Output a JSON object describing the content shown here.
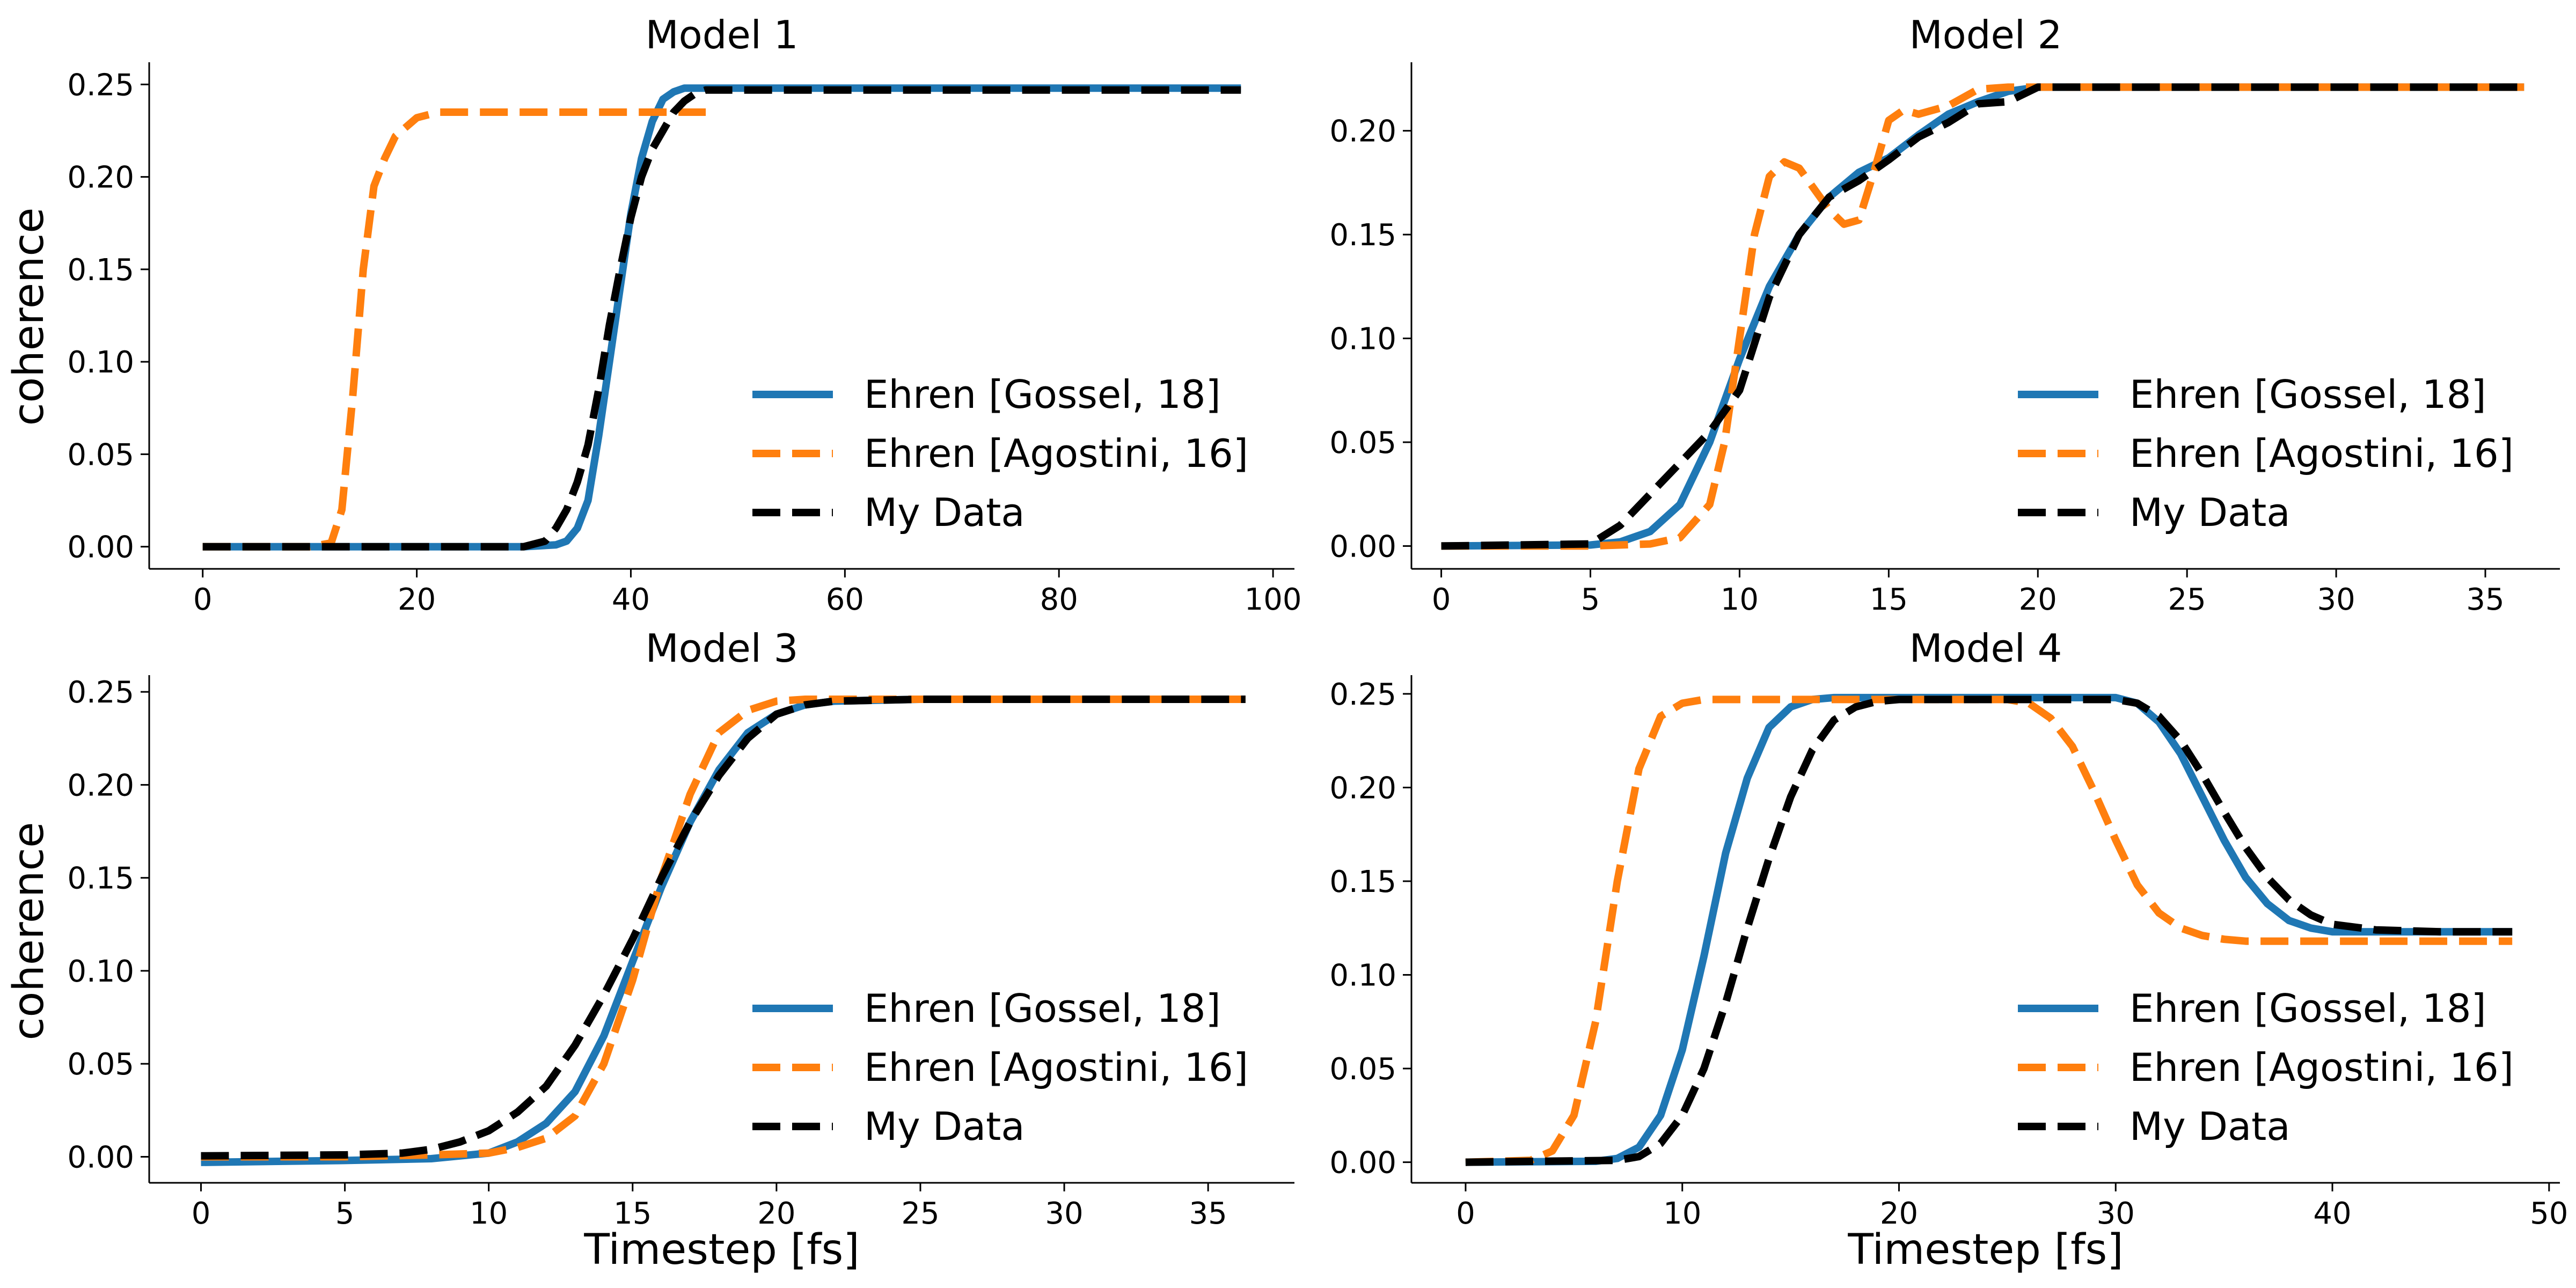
{
  "figure": {
    "panels": [
      {
        "id": "m1",
        "title": "Model 1",
        "ylabel": "coherence",
        "xlabel": ""
      },
      {
        "id": "m2",
        "title": "Model 2",
        "ylabel": "",
        "xlabel": ""
      },
      {
        "id": "m3",
        "title": "Model 3",
        "ylabel": "coherence",
        "xlabel": "Timestep [fs]"
      },
      {
        "id": "m4",
        "title": "Model 4",
        "ylabel": "",
        "xlabel": "Timestep [fs]"
      }
    ]
  },
  "colors": {
    "gossel": "#1f77b4",
    "agostini": "#ff7f0e",
    "mydata": "#000000"
  },
  "chart_data": [
    {
      "type": "line",
      "title": "Model 1",
      "xlabel": "",
      "ylabel": "coherence",
      "xlim": [
        -5,
        102
      ],
      "ylim": [
        -0.012,
        0.262
      ],
      "xticks": [
        0,
        20,
        40,
        60,
        80,
        100
      ],
      "yticks": [
        0.0,
        0.05,
        0.1,
        0.15,
        0.2,
        0.25
      ],
      "ytick_labels": [
        "0.00",
        "0.05",
        "0.10",
        "0.15",
        "0.20",
        "0.25"
      ],
      "legend": "lower-right",
      "series": [
        {
          "name": "Ehren [Gossel, 18]",
          "style": "solid",
          "x": [
            0,
            10,
            20,
            30,
            33,
            34,
            35,
            36,
            37,
            38,
            39,
            40,
            41,
            42,
            43,
            44,
            45,
            46,
            50,
            60,
            80,
            97
          ],
          "y": [
            0,
            0,
            0,
            0,
            0.001,
            0.003,
            0.01,
            0.025,
            0.06,
            0.1,
            0.14,
            0.18,
            0.21,
            0.23,
            0.242,
            0.246,
            0.248,
            0.248,
            0.248,
            0.248,
            0.248,
            0.248
          ]
        },
        {
          "name": "Ehren [Agostini, 16]",
          "style": "dashed",
          "x": [
            0,
            5,
            10,
            12,
            13,
            14,
            15,
            16,
            17,
            18,
            20,
            22,
            25,
            30,
            40,
            47
          ],
          "y": [
            0,
            0,
            0,
            0.002,
            0.02,
            0.08,
            0.15,
            0.195,
            0.21,
            0.222,
            0.232,
            0.235,
            0.235,
            0.235,
            0.235,
            0.235
          ]
        },
        {
          "name": "My Data",
          "style": "dashed",
          "x": [
            0,
            10,
            20,
            30,
            32,
            33,
            34,
            35,
            36,
            37,
            38,
            39,
            40,
            41,
            42,
            43,
            44,
            45,
            46,
            47,
            50,
            60,
            80,
            97
          ],
          "y": [
            0,
            0,
            0,
            0,
            0.003,
            0.01,
            0.02,
            0.035,
            0.055,
            0.085,
            0.12,
            0.15,
            0.178,
            0.2,
            0.215,
            0.225,
            0.235,
            0.241,
            0.245,
            0.247,
            0.247,
            0.247,
            0.247,
            0.247
          ]
        }
      ]
    },
    {
      "type": "line",
      "title": "Model 2",
      "xlabel": "",
      "ylabel": "",
      "xlim": [
        -1,
        37.5
      ],
      "ylim": [
        -0.011,
        0.233
      ],
      "xticks": [
        0,
        5,
        10,
        15,
        20,
        25,
        30,
        35
      ],
      "yticks": [
        0.0,
        0.05,
        0.1,
        0.15,
        0.2
      ],
      "ytick_labels": [
        "0.00",
        "0.05",
        "0.10",
        "0.15",
        "0.20"
      ],
      "legend": "lower-right",
      "series": [
        {
          "name": "Ehren [Gossel, 18]",
          "style": "solid",
          "x": [
            0,
            5,
            6,
            7,
            8,
            9,
            10,
            11,
            12,
            13,
            14,
            15,
            16,
            17,
            18,
            19,
            20,
            25,
            36.3
          ],
          "y": [
            0,
            0.0005,
            0.002,
            0.007,
            0.02,
            0.05,
            0.09,
            0.125,
            0.15,
            0.168,
            0.18,
            0.187,
            0.198,
            0.208,
            0.214,
            0.219,
            0.221,
            0.221,
            0.221
          ]
        },
        {
          "name": "Ehren [Agostini, 16]",
          "style": "dashed",
          "x": [
            0,
            5,
            7,
            8,
            9,
            9.5,
            10,
            10.5,
            11,
            11.5,
            12,
            12.5,
            13,
            13.5,
            14,
            14.5,
            15,
            15.5,
            16,
            17,
            18,
            19,
            20,
            25,
            36.3
          ],
          "y": [
            0,
            0,
            0.001,
            0.004,
            0.02,
            0.05,
            0.1,
            0.15,
            0.178,
            0.185,
            0.182,
            0.172,
            0.162,
            0.155,
            0.157,
            0.18,
            0.205,
            0.21,
            0.208,
            0.212,
            0.22,
            0.221,
            0.221,
            0.221,
            0.221
          ]
        },
        {
          "name": "My Data",
          "style": "dashed",
          "x": [
            0,
            5,
            6,
            7,
            8,
            9,
            10,
            11,
            12,
            13,
            14,
            15,
            16,
            17,
            18,
            19,
            20,
            25,
            36.3
          ],
          "y": [
            0,
            0.001,
            0.01,
            0.025,
            0.04,
            0.055,
            0.075,
            0.12,
            0.15,
            0.168,
            0.176,
            0.186,
            0.197,
            0.204,
            0.213,
            0.214,
            0.221,
            0.221,
            0.221
          ]
        }
      ]
    },
    {
      "type": "line",
      "title": "Model 3",
      "xlabel": "Timestep [fs]",
      "ylabel": "coherence",
      "xlim": [
        -1.8,
        38
      ],
      "ylim": [
        -0.014,
        0.259
      ],
      "xticks": [
        0,
        5,
        10,
        15,
        20,
        25,
        30,
        35
      ],
      "yticks": [
        0.0,
        0.05,
        0.1,
        0.15,
        0.2,
        0.25
      ],
      "ytick_labels": [
        "0.00",
        "0.05",
        "0.10",
        "0.15",
        "0.20",
        "0.25"
      ],
      "legend": "lower-right",
      "series": [
        {
          "name": "Ehren [Gossel, 18]",
          "style": "solid",
          "x": [
            0,
            5,
            8,
            10,
            11,
            12,
            13,
            14,
            15,
            16,
            17,
            18,
            19,
            20,
            21,
            22,
            25,
            30,
            36.3
          ],
          "y": [
            -0.003,
            -0.002,
            -0.001,
            0.002,
            0.008,
            0.018,
            0.035,
            0.065,
            0.105,
            0.145,
            0.18,
            0.208,
            0.228,
            0.238,
            0.243,
            0.245,
            0.246,
            0.246,
            0.246
          ]
        },
        {
          "name": "Ehren [Agostini, 16]",
          "style": "dashed",
          "x": [
            0,
            5,
            8,
            10,
            11,
            12,
            13,
            14,
            15,
            16,
            17,
            18,
            19,
            20,
            21,
            22,
            25,
            30,
            36.3
          ],
          "y": [
            0,
            0,
            0.001,
            0.002,
            0.005,
            0.01,
            0.022,
            0.05,
            0.095,
            0.15,
            0.195,
            0.228,
            0.24,
            0.245,
            0.246,
            0.246,
            0.246,
            0.246,
            0.246
          ]
        },
        {
          "name": "My Data",
          "style": "dashed",
          "x": [
            0,
            5,
            7,
            8,
            9,
            10,
            11,
            12,
            13,
            14,
            15,
            16,
            17,
            18,
            19,
            20,
            21,
            22,
            25,
            30,
            36.3
          ],
          "y": [
            0.0005,
            0.001,
            0.002,
            0.004,
            0.008,
            0.014,
            0.024,
            0.038,
            0.06,
            0.087,
            0.117,
            0.15,
            0.18,
            0.205,
            0.225,
            0.238,
            0.243,
            0.245,
            0.246,
            0.246,
            0.246
          ]
        }
      ]
    },
    {
      "type": "line",
      "title": "Model 4",
      "xlabel": "Timestep [fs]",
      "ylabel": "",
      "xlim": [
        -2.5,
        50.5
      ],
      "ylim": [
        -0.011,
        0.26
      ],
      "xticks": [
        0,
        10,
        20,
        30,
        40,
        50
      ],
      "yticks": [
        0.0,
        0.05,
        0.1,
        0.15,
        0.2,
        0.25
      ],
      "ytick_labels": [
        "0.00",
        "0.05",
        "0.10",
        "0.15",
        "0.20",
        "0.25"
      ],
      "legend": "lower-right",
      "series": [
        {
          "name": "Ehren [Gossel, 18]",
          "style": "solid",
          "x": [
            0,
            6,
            7,
            8,
            9,
            10,
            11,
            12,
            13,
            14,
            15,
            16,
            17,
            20,
            25,
            30,
            31,
            32,
            33,
            34,
            35,
            36,
            37,
            38,
            39,
            40,
            42,
            45,
            48.3
          ],
          "y": [
            0,
            0.0005,
            0.002,
            0.008,
            0.025,
            0.06,
            0.11,
            0.165,
            0.205,
            0.232,
            0.243,
            0.247,
            0.248,
            0.248,
            0.248,
            0.248,
            0.245,
            0.235,
            0.218,
            0.195,
            0.172,
            0.152,
            0.138,
            0.129,
            0.125,
            0.123,
            0.123,
            0.123,
            0.123
          ]
        },
        {
          "name": "Ehren [Agostini, 16]",
          "style": "dashed",
          "x": [
            0,
            3,
            4,
            5,
            6,
            7,
            8,
            9,
            10,
            11,
            12,
            15,
            20,
            25,
            26,
            27,
            28,
            29,
            30,
            31,
            32,
            33,
            34,
            35,
            36,
            38,
            40,
            45,
            48.3
          ],
          "y": [
            0,
            0.001,
            0.006,
            0.025,
            0.075,
            0.15,
            0.21,
            0.238,
            0.245,
            0.247,
            0.247,
            0.247,
            0.247,
            0.247,
            0.245,
            0.237,
            0.222,
            0.198,
            0.172,
            0.148,
            0.133,
            0.125,
            0.121,
            0.119,
            0.118,
            0.118,
            0.118,
            0.118,
            0.118
          ]
        },
        {
          "name": "My Data",
          "style": "dashed",
          "x": [
            0,
            7,
            8,
            9,
            10,
            11,
            12,
            13,
            14,
            15,
            16,
            17,
            18,
            19,
            20,
            25,
            30,
            31,
            32,
            33,
            34,
            35,
            36,
            37,
            38,
            39,
            40,
            42,
            45,
            48.3
          ],
          "y": [
            0,
            0.001,
            0.003,
            0.01,
            0.025,
            0.05,
            0.085,
            0.125,
            0.162,
            0.195,
            0.22,
            0.236,
            0.243,
            0.246,
            0.247,
            0.247,
            0.247,
            0.245,
            0.238,
            0.225,
            0.207,
            0.187,
            0.168,
            0.152,
            0.14,
            0.132,
            0.127,
            0.124,
            0.123,
            0.123
          ]
        }
      ]
    }
  ]
}
